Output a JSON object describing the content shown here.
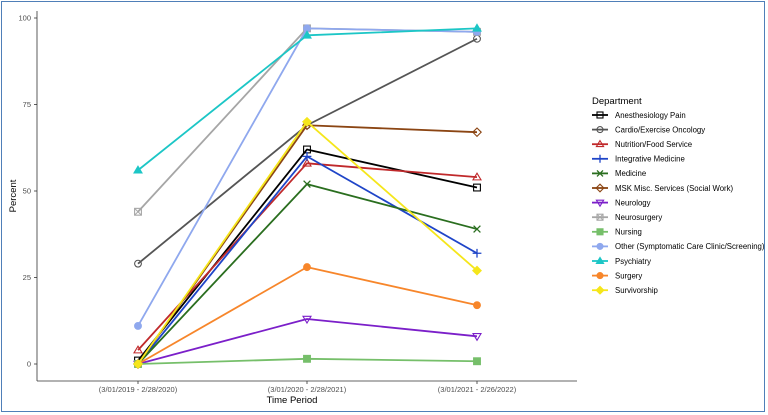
{
  "chart_data": {
    "type": "line",
    "categories": [
      "(3/01/2019 - 2/28/2020)",
      "(3/01/2020 - 2/28/2021)",
      "(3/01/2021 - 2/26/2022)"
    ],
    "xlabel": "Time Period",
    "ylabel": "Percent",
    "ylim": [
      0,
      100
    ],
    "yticks": [
      0,
      25,
      50,
      75,
      100
    ],
    "grid": false,
    "legend": {
      "title": "Department",
      "placement": "right"
    },
    "series": [
      {
        "name": "Anesthesiology Pain",
        "color": "#000000",
        "marker": "square-open",
        "values": [
          1,
          62,
          51
        ]
      },
      {
        "name": "Cardio/Exercise Oncology",
        "color": "#555555",
        "marker": "circle-open",
        "values": [
          29,
          69,
          94
        ]
      },
      {
        "name": "Nutrition/Food Service",
        "color": "#c0292b",
        "marker": "triangle-open",
        "values": [
          4,
          58,
          54
        ]
      },
      {
        "name": "Integrative Medicine",
        "color": "#1f45c8",
        "marker": "plus",
        "values": [
          0,
          60,
          32
        ]
      },
      {
        "name": "Medicine",
        "color": "#2a6e1f",
        "marker": "cross",
        "values": [
          0,
          52,
          39
        ]
      },
      {
        "name": "MSK Misc. Services (Social Work)",
        "color": "#8b4513",
        "marker": "diamond-open",
        "values": [
          0,
          69,
          67
        ]
      },
      {
        "name": "Neurology",
        "color": "#7b1fc9",
        "marker": "triangle-down-open",
        "values": [
          0,
          13,
          8
        ]
      },
      {
        "name": "Neurosurgery",
        "color": "#a6a6a6",
        "marker": "square-cross",
        "values": [
          44,
          97,
          96
        ]
      },
      {
        "name": "Nursing",
        "color": "#76bf6a",
        "marker": "square",
        "values": [
          0,
          1.5,
          0.8
        ]
      },
      {
        "name": "Other (Symptomatic Care Clinic/Screening)",
        "color": "#8fa8ee",
        "marker": "circle",
        "values": [
          11,
          97,
          96
        ]
      },
      {
        "name": "Psychiatry",
        "color": "#1cc6c6",
        "marker": "triangle",
        "values": [
          56,
          95,
          97
        ]
      },
      {
        "name": "Surgery",
        "color": "#f7862b",
        "marker": "circle",
        "values": [
          0,
          28,
          17
        ]
      },
      {
        "name": "Survivorship",
        "color": "#f5e61b",
        "marker": "diamond",
        "values": [
          0,
          70,
          27
        ]
      }
    ]
  }
}
